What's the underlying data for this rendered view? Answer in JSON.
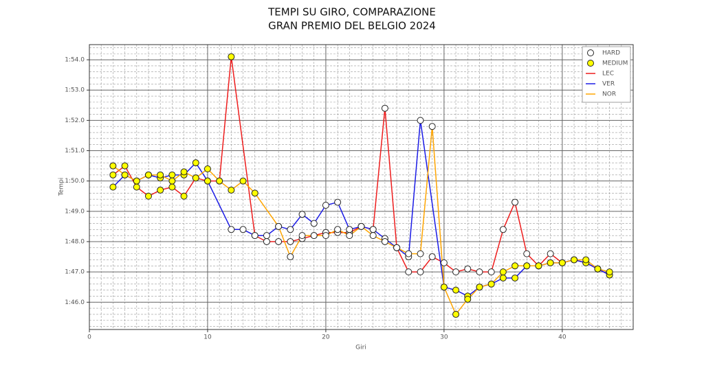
{
  "chart_data": {
    "type": "line",
    "title": "TEMPI SU GIRO, COMPARAZIONE",
    "subtitle": "GRAN PREMIO DEL BELGIO 2024",
    "xlabel": "Giri",
    "ylabel": "Tempi",
    "xlim": [
      0,
      46
    ],
    "xticks": [
      0,
      10,
      20,
      30,
      40
    ],
    "ylim": [
      105.1,
      114.5
    ],
    "yticks": [
      {
        "value": 106,
        "label": "1:46.0"
      },
      {
        "value": 107,
        "label": "1:47.0"
      },
      {
        "value": 108,
        "label": "1:48.0"
      },
      {
        "value": 109,
        "label": "1:49.0"
      },
      {
        "value": 110,
        "label": "1:50.0"
      },
      {
        "value": 111,
        "label": "1:51.0"
      },
      {
        "value": 112,
        "label": "1:52.0"
      },
      {
        "value": 113,
        "label": "1:53.0"
      },
      {
        "value": 114,
        "label": "1:54.0"
      }
    ],
    "grid": true,
    "legend": "upper right",
    "compounds": [
      {
        "name": "HARD",
        "color": "#ffffff"
      },
      {
        "name": "MEDIUM",
        "color": "#ffff00"
      }
    ],
    "series": [
      {
        "name": "LEC",
        "color": "#ee1c1c",
        "x": [
          2,
          3,
          4,
          5,
          6,
          7,
          8,
          9,
          10,
          11,
          12,
          14,
          15,
          16,
          17,
          18,
          19,
          20,
          21,
          22,
          23,
          24,
          25,
          26,
          27,
          28,
          29,
          30,
          31,
          32,
          33,
          34,
          35,
          36,
          37,
          38,
          39,
          40,
          41,
          42,
          43,
          44
        ],
        "values": [
          110.2,
          110.5,
          109.8,
          109.5,
          109.7,
          109.8,
          109.5,
          110.1,
          110.0,
          110.0,
          114.1,
          108.2,
          108.0,
          108.0,
          108.0,
          108.1,
          108.2,
          108.3,
          108.3,
          108.3,
          108.5,
          108.4,
          112.4,
          107.8,
          107.0,
          107.0,
          107.5,
          107.3,
          107.0,
          107.1,
          107.0,
          107.0,
          108.4,
          109.3,
          107.6,
          107.2,
          107.6,
          107.3,
          107.4,
          107.3,
          107.1,
          106.9
        ],
        "compound": [
          "MEDIUM",
          "MEDIUM",
          "MEDIUM",
          "MEDIUM",
          "MEDIUM",
          "MEDIUM",
          "MEDIUM",
          "MEDIUM",
          "MEDIUM",
          "MEDIUM",
          "MEDIUM",
          "HARD",
          "HARD",
          "HARD",
          "HARD",
          "HARD",
          "HARD",
          "HARD",
          "HARD",
          "HARD",
          "HARD",
          "HARD",
          "HARD",
          "HARD",
          "HARD",
          "HARD",
          "HARD",
          "HARD",
          "HARD",
          "HARD",
          "HARD",
          "HARD",
          "HARD",
          "HARD",
          "HARD",
          "HARD",
          "HARD",
          "HARD",
          "HARD",
          "HARD",
          "HARD",
          "HARD"
        ]
      },
      {
        "name": "VER",
        "color": "#1a1ae6",
        "x": [
          2,
          3,
          4,
          5,
          6,
          7,
          8,
          9,
          10,
          12,
          13,
          14,
          15,
          16,
          17,
          18,
          19,
          20,
          21,
          22,
          23,
          24,
          25,
          26,
          27,
          28,
          30,
          31,
          32,
          33,
          34,
          35,
          36,
          37,
          38,
          39,
          40,
          41,
          42,
          43,
          44
        ],
        "values": [
          109.8,
          110.2,
          110.0,
          110.2,
          110.1,
          110.2,
          110.2,
          110.6,
          110.0,
          108.4,
          108.4,
          108.2,
          108.2,
          108.5,
          108.4,
          108.9,
          108.6,
          109.2,
          109.3,
          108.4,
          108.5,
          108.4,
          108.1,
          107.8,
          107.5,
          112.0,
          106.5,
          106.4,
          106.2,
          106.5,
          106.6,
          106.8,
          106.8,
          107.2,
          107.2,
          107.3,
          107.3,
          107.4,
          107.3,
          107.1,
          106.9
        ],
        "compound": [
          "MEDIUM",
          "MEDIUM",
          "MEDIUM",
          "MEDIUM",
          "MEDIUM",
          "MEDIUM",
          "MEDIUM",
          "MEDIUM",
          "MEDIUM",
          "HARD",
          "HARD",
          "HARD",
          "HARD",
          "HARD",
          "HARD",
          "HARD",
          "HARD",
          "HARD",
          "HARD",
          "HARD",
          "HARD",
          "HARD",
          "HARD",
          "HARD",
          "HARD",
          "HARD",
          "MEDIUM",
          "MEDIUM",
          "MEDIUM",
          "MEDIUM",
          "MEDIUM",
          "MEDIUM",
          "MEDIUM",
          "MEDIUM",
          "MEDIUM",
          "MEDIUM",
          "MEDIUM",
          "MEDIUM",
          "MEDIUM",
          "MEDIUM",
          "MEDIUM"
        ]
      },
      {
        "name": "NOR",
        "color": "#ffa500",
        "x": [
          2,
          3,
          4,
          5,
          6,
          7,
          8,
          9,
          10,
          11,
          12,
          13,
          14,
          16,
          17,
          18,
          19,
          20,
          21,
          22,
          23,
          24,
          25,
          26,
          27,
          28,
          29,
          30,
          31,
          32,
          33,
          34,
          35,
          36,
          37,
          38,
          39,
          40,
          41,
          42,
          43,
          44
        ],
        "values": [
          110.5,
          110.2,
          110.0,
          110.2,
          110.2,
          110.0,
          110.3,
          110.1,
          110.4,
          110.0,
          109.7,
          110.0,
          109.6,
          108.5,
          107.5,
          108.2,
          108.2,
          108.2,
          108.4,
          108.2,
          108.5,
          108.2,
          108.0,
          107.8,
          107.6,
          107.6,
          111.8,
          106.5,
          105.6,
          106.1,
          106.5,
          106.6,
          107.0,
          107.2,
          107.2,
          107.2,
          107.3,
          107.3,
          107.4,
          107.4,
          107.1,
          107.0
        ],
        "compound": [
          "MEDIUM",
          "MEDIUM",
          "MEDIUM",
          "MEDIUM",
          "MEDIUM",
          "MEDIUM",
          "MEDIUM",
          "MEDIUM",
          "MEDIUM",
          "MEDIUM",
          "MEDIUM",
          "MEDIUM",
          "MEDIUM",
          "HARD",
          "HARD",
          "HARD",
          "HARD",
          "HARD",
          "HARD",
          "HARD",
          "HARD",
          "HARD",
          "HARD",
          "HARD",
          "HARD",
          "HARD",
          "HARD",
          "MEDIUM",
          "MEDIUM",
          "MEDIUM",
          "MEDIUM",
          "MEDIUM",
          "MEDIUM",
          "MEDIUM",
          "MEDIUM",
          "MEDIUM",
          "MEDIUM",
          "MEDIUM",
          "MEDIUM",
          "MEDIUM",
          "MEDIUM",
          "MEDIUM"
        ]
      }
    ]
  }
}
